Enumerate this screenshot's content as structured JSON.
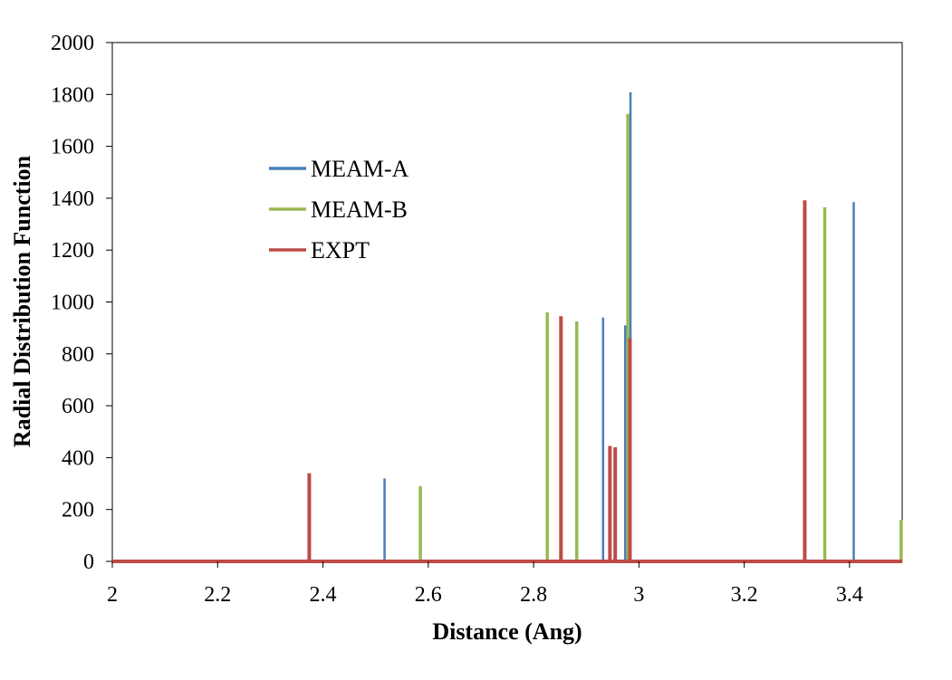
{
  "chart_data": {
    "type": "line",
    "title": "",
    "xlabel": "Distance (Ang)",
    "ylabel": "Radial Distribution Function",
    "xlim": [
      2,
      3.5
    ],
    "ylim": [
      0,
      2000
    ],
    "x_ticks": [
      "2",
      "2.2",
      "2.4",
      "2.6",
      "2.8",
      "3",
      "3.2",
      "3.4"
    ],
    "y_ticks": [
      "0",
      "200",
      "400",
      "600",
      "800",
      "1000",
      "1200",
      "1400",
      "1600",
      "1800",
      "2000"
    ],
    "grid": false,
    "legend_position": "upper-left",
    "series": [
      {
        "name": "MEAM-A",
        "color": "#4a7ebb",
        "peaks": [
          {
            "x": 2.517,
            "y": 320
          },
          {
            "x": 2.932,
            "y": 940
          },
          {
            "x": 2.974,
            "y": 910
          },
          {
            "x": 2.984,
            "y": 1808
          },
          {
            "x": 3.408,
            "y": 1385
          }
        ]
      },
      {
        "name": "MEAM-B",
        "color": "#98b954",
        "peaks": [
          {
            "x": 2.585,
            "y": 290
          },
          {
            "x": 2.826,
            "y": 960
          },
          {
            "x": 2.882,
            "y": 925
          },
          {
            "x": 2.979,
            "y": 1725
          },
          {
            "x": 3.353,
            "y": 1365
          },
          {
            "x": 3.498,
            "y": 160
          }
        ]
      },
      {
        "name": "EXPT",
        "color": "#be4b48",
        "peaks": [
          {
            "x": 2.374,
            "y": 340
          },
          {
            "x": 2.852,
            "y": 945
          },
          {
            "x": 2.945,
            "y": 445
          },
          {
            "x": 2.955,
            "y": 440
          },
          {
            "x": 2.983,
            "y": 860
          },
          {
            "x": 3.315,
            "y": 1392
          }
        ]
      }
    ]
  }
}
